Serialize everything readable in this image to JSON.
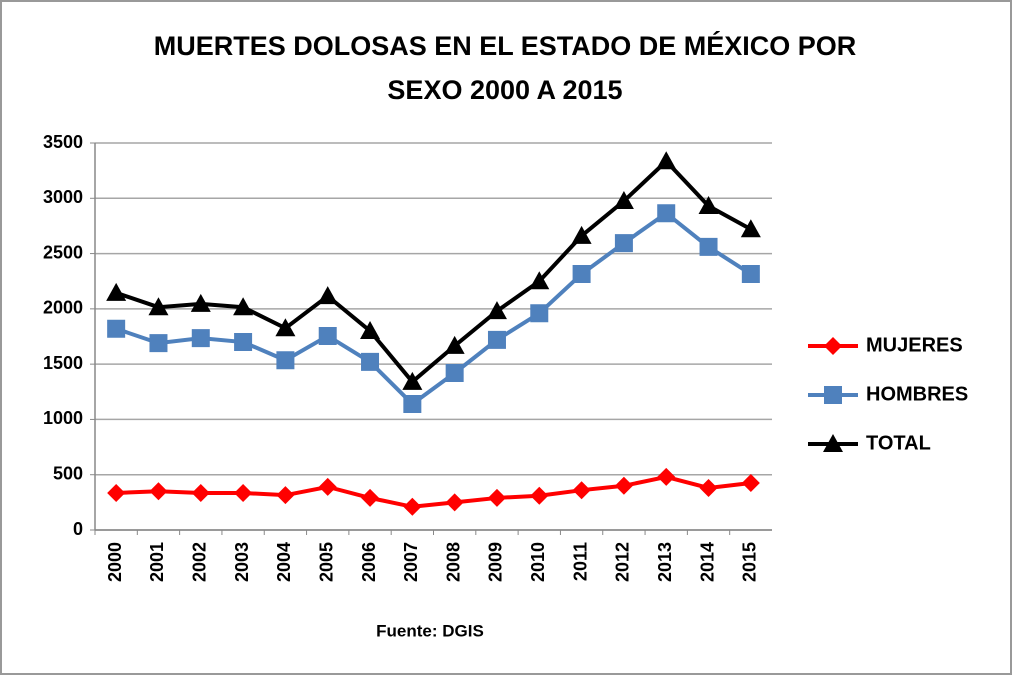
{
  "chart_data": {
    "type": "line",
    "title": "MUERTES DOLOSAS EN EL ESTADO DE MÉXICO POR",
    "subtitle": "SEXO 2000 A 2015",
    "source": "Fuente: DGIS",
    "categories": [
      "2000",
      "2001",
      "2002",
      "2003",
      "2004",
      "2005",
      "2006",
      "2007",
      "2008",
      "2009",
      "2010",
      "2011",
      "2012",
      "2013",
      "2014",
      "2015"
    ],
    "series": [
      {
        "name": "MUJERES",
        "color": "#ff0000",
        "marker": "diamond",
        "values": [
          335,
          350,
          335,
          335,
          315,
          390,
          290,
          210,
          250,
          290,
          310,
          360,
          400,
          480,
          380,
          425
        ]
      },
      {
        "name": "HOMBRES",
        "color": "#4f81bd",
        "marker": "square",
        "values": [
          1820,
          1690,
          1735,
          1700,
          1535,
          1755,
          1520,
          1140,
          1420,
          1720,
          1960,
          2315,
          2595,
          2865,
          2560,
          2315
        ]
      },
      {
        "name": "TOTAL",
        "color": "#000000",
        "marker": "triangle",
        "values": [
          2145,
          2015,
          2045,
          2015,
          1825,
          2115,
          1800,
          1340,
          1665,
          1980,
          2250,
          2660,
          2975,
          3335,
          2930,
          2720
        ]
      }
    ],
    "ylim": [
      0,
      3500
    ],
    "yticks": [
      0,
      500,
      1000,
      1500,
      2000,
      2500,
      3000,
      3500
    ],
    "grid": true,
    "legend": "right"
  }
}
